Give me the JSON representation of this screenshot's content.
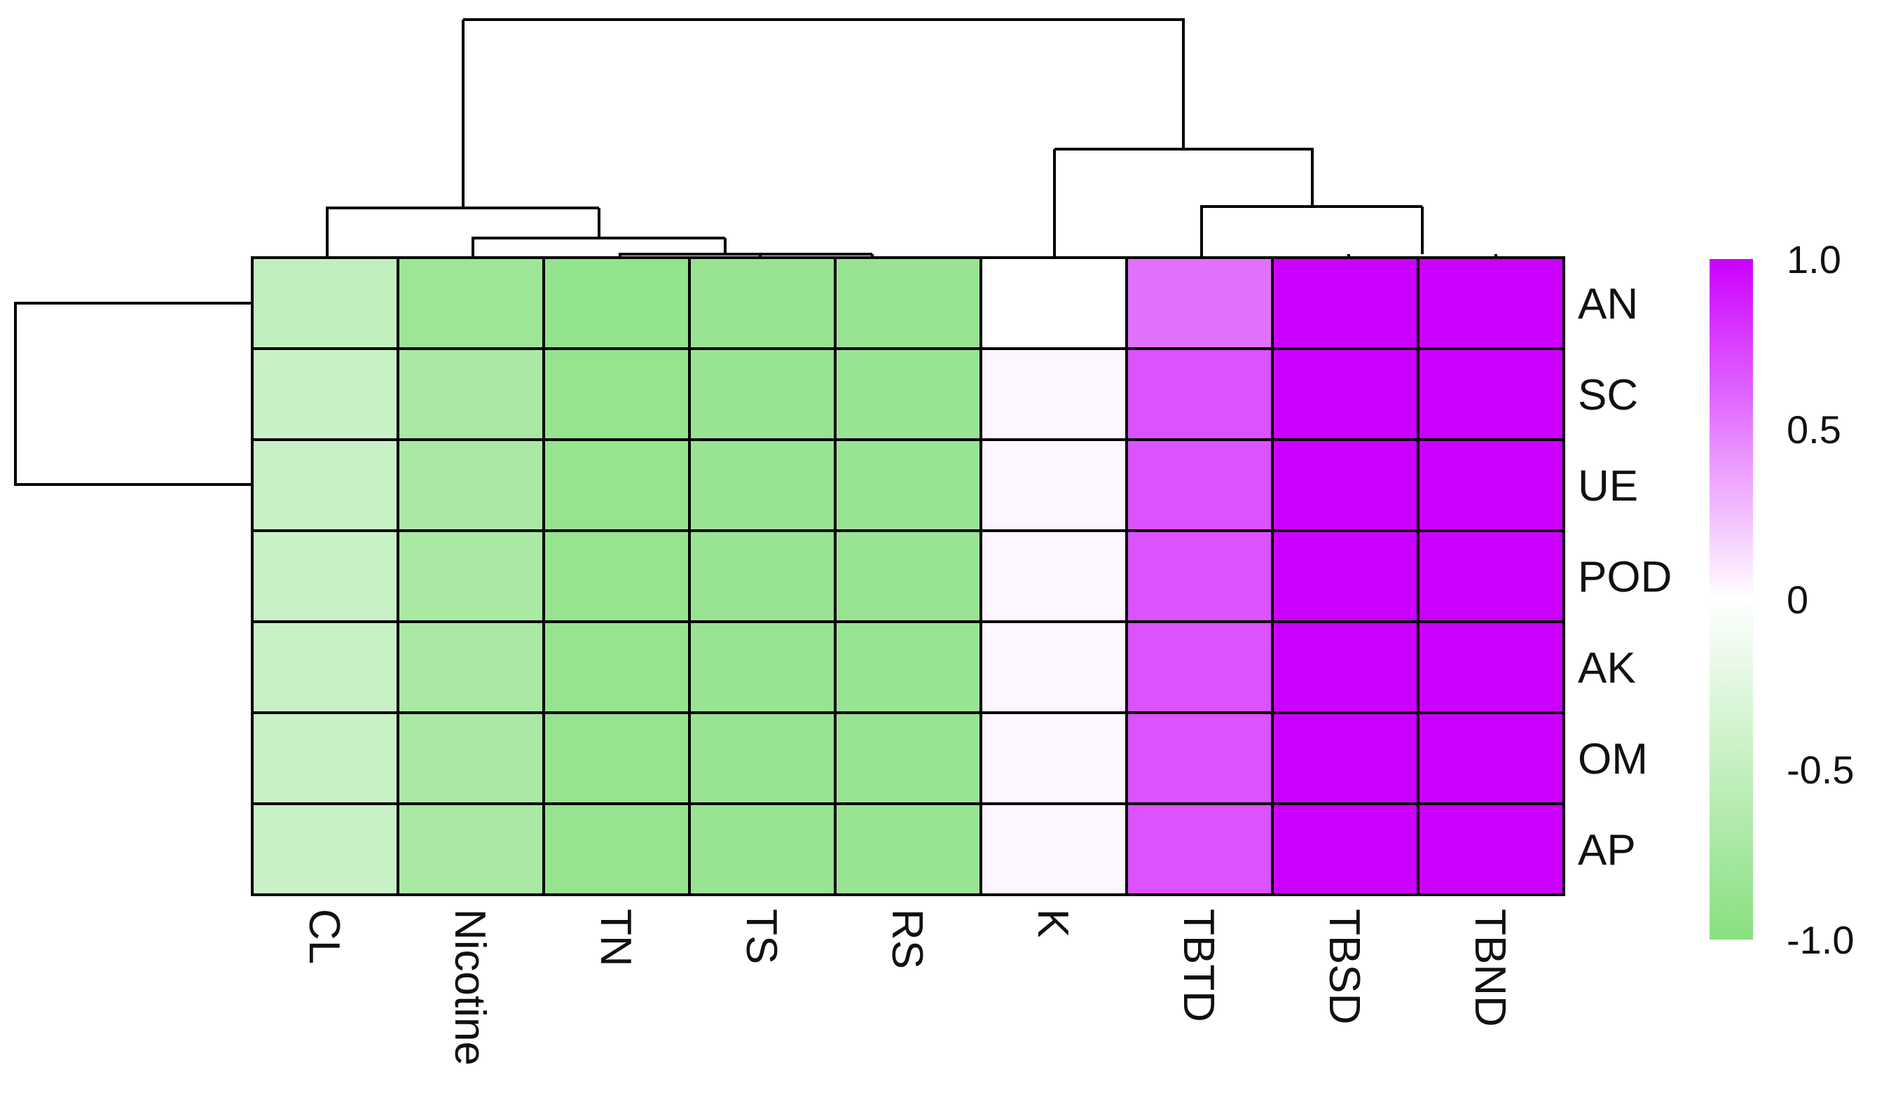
{
  "chart_data": {
    "type": "heatmap",
    "title": "",
    "xlabel": "",
    "ylabel": "",
    "rows": [
      "AN",
      "SC",
      "UE",
      "POD",
      "AK",
      "OM",
      "AP"
    ],
    "columns": [
      "CL",
      "Nicotine",
      "TN",
      "TS",
      "RS",
      "K",
      "TBTD",
      "TBSD",
      "TBND"
    ],
    "values": [
      [
        -0.52,
        -0.82,
        -0.9,
        -0.86,
        -0.86,
        0.0,
        0.56,
        1.0,
        1.0
      ],
      [
        -0.45,
        -0.72,
        -0.88,
        -0.86,
        -0.86,
        0.04,
        0.68,
        1.0,
        1.0
      ],
      [
        -0.45,
        -0.72,
        -0.88,
        -0.86,
        -0.86,
        0.04,
        0.68,
        1.0,
        1.0
      ],
      [
        -0.45,
        -0.72,
        -0.88,
        -0.86,
        -0.86,
        0.04,
        0.68,
        1.0,
        1.0
      ],
      [
        -0.45,
        -0.72,
        -0.88,
        -0.86,
        -0.86,
        0.04,
        0.68,
        1.0,
        1.0
      ],
      [
        -0.45,
        -0.72,
        -0.88,
        -0.86,
        -0.86,
        0.04,
        0.68,
        1.0,
        1.0
      ],
      [
        -0.45,
        -0.72,
        -0.88,
        -0.86,
        -0.86,
        0.04,
        0.68,
        1.0,
        1.0
      ]
    ],
    "color_scale": {
      "min": -1.0,
      "max": 1.0,
      "low_color": "#88e080",
      "mid_color": "#ffffff",
      "high_color": "#cc00ff",
      "ticks": [
        {
          "value": 1.0,
          "label": "1.0"
        },
        {
          "value": 0.5,
          "label": "0.5"
        },
        {
          "value": 0.0,
          "label": "0"
        },
        {
          "value": -0.5,
          "label": "-0.5"
        },
        {
          "value": -1.0,
          "label": "-1.0"
        }
      ]
    },
    "legend": "right",
    "column_dendrogram": true,
    "row_dendrogram": true
  }
}
